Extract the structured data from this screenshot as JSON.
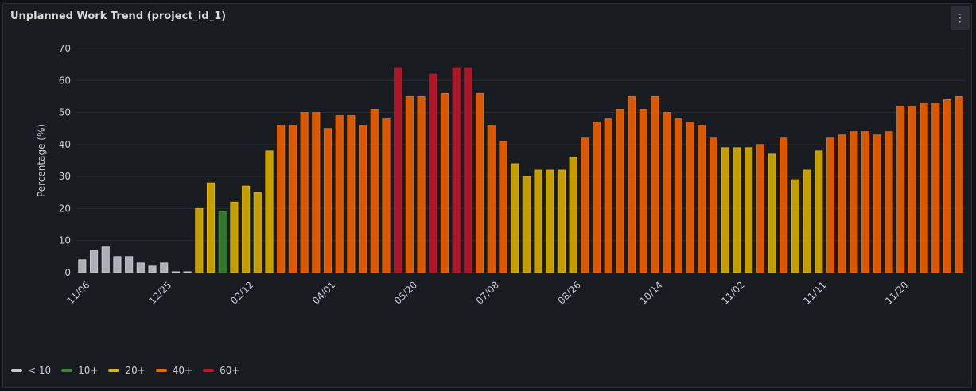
{
  "panel": {
    "title": "Unplanned Work Trend (project_id_1)",
    "menu_icon": "kebab-menu-icon"
  },
  "chart_data": {
    "type": "bar",
    "title": "Unplanned Work Trend (project_id_1)",
    "xlabel": "",
    "ylabel": "Percentage (%)",
    "ylim": [
      0,
      70
    ],
    "yticks": [
      0,
      10,
      20,
      30,
      40,
      50,
      60,
      70
    ],
    "grid": true,
    "legend_position": "bottom-left",
    "values": [
      4,
      7,
      8,
      5,
      5,
      3,
      2,
      3,
      0,
      0,
      20,
      28,
      19,
      22,
      27,
      25,
      38,
      46,
      46,
      50,
      50,
      45,
      49,
      49,
      46,
      51,
      48,
      64,
      55,
      55,
      62,
      56,
      64,
      64,
      56,
      46,
      41,
      34,
      30,
      32,
      32,
      32,
      36,
      42,
      47,
      48,
      51,
      55,
      51,
      55,
      50,
      48,
      47,
      46,
      42,
      39,
      39,
      39,
      40,
      37,
      42,
      29,
      32,
      38,
      42,
      43,
      44,
      44,
      43,
      44,
      52,
      52,
      53,
      53,
      54,
      55
    ],
    "tick_labels": [
      {
        "index": 0,
        "label": "11/06"
      },
      {
        "index": 7,
        "label": "12/25"
      },
      {
        "index": 14,
        "label": "02/12"
      },
      {
        "index": 21,
        "label": "04/01"
      },
      {
        "index": 28,
        "label": "05/20"
      },
      {
        "index": 35,
        "label": "07/08"
      },
      {
        "index": 42,
        "label": "08/26"
      },
      {
        "index": 49,
        "label": "10/14"
      },
      {
        "index": 56,
        "label": "11/02"
      },
      {
        "index": 63,
        "label": "11/11"
      },
      {
        "index": 70,
        "label": "11/20"
      }
    ],
    "thresholds": [
      {
        "label": "< 10",
        "min": 0,
        "color": "#c7c9d1"
      },
      {
        "label": "10+",
        "min": 10,
        "color": "#37872d"
      },
      {
        "label": "20+",
        "min": 20,
        "color": "#e0b400"
      },
      {
        "label": "40+",
        "min": 40,
        "color": "#fa6400"
      },
      {
        "label": "60+",
        "min": 60,
        "color": "#c4162a"
      }
    ]
  }
}
